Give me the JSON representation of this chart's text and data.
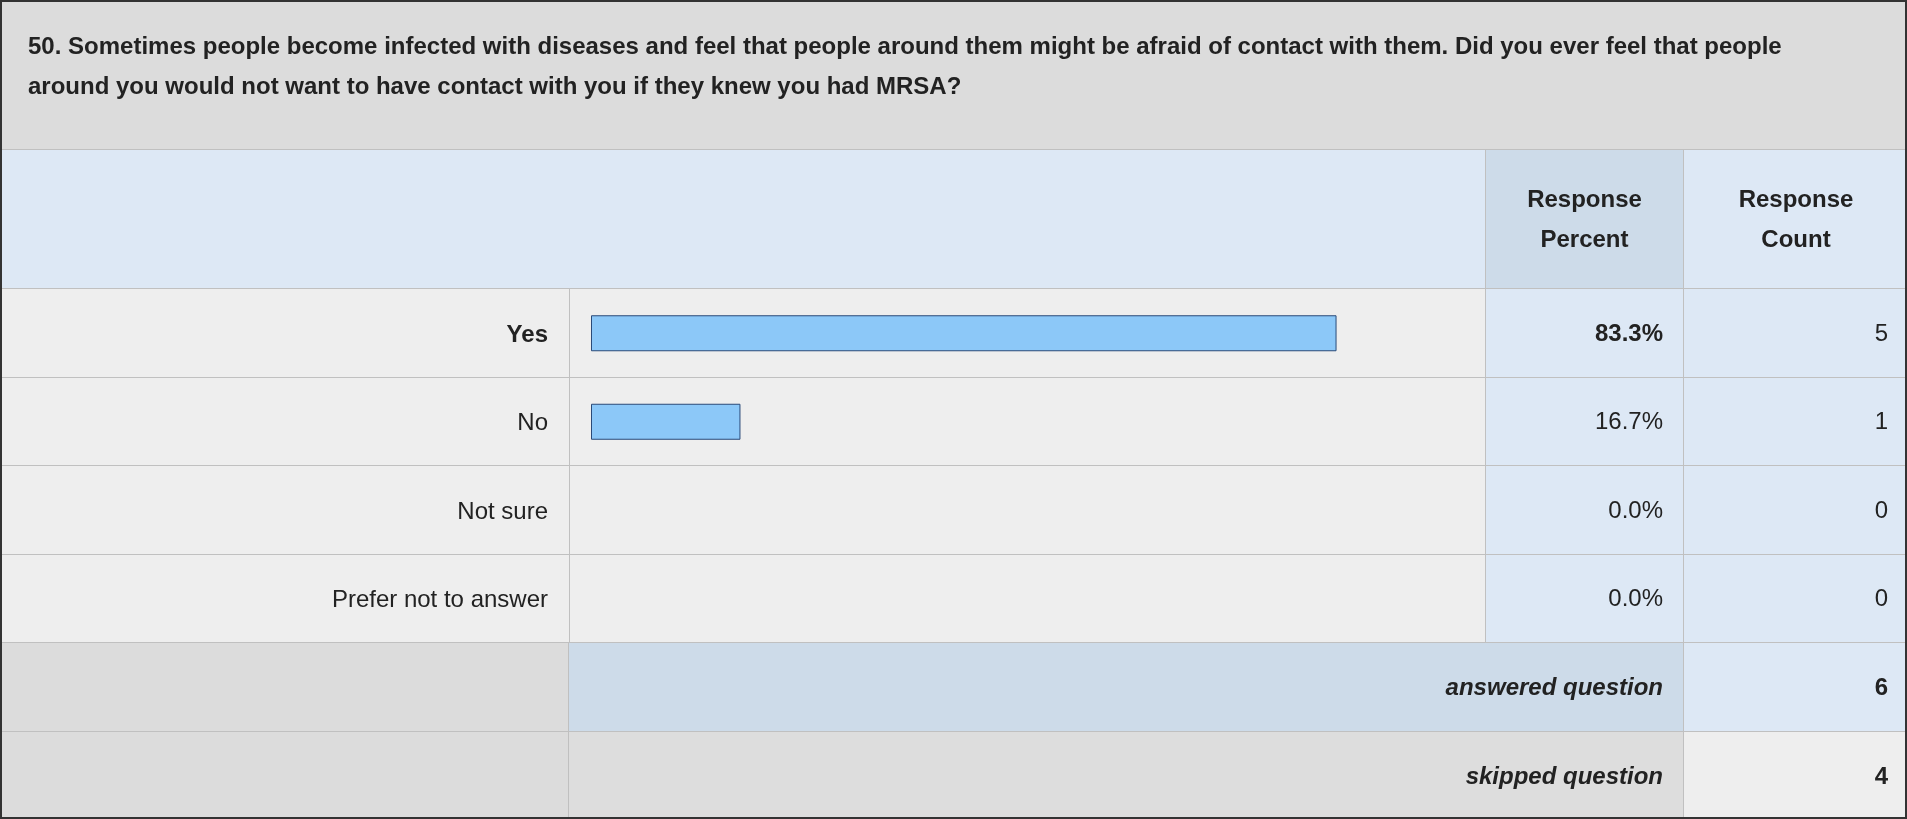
{
  "chart_data": {
    "type": "bar",
    "orientation": "horizontal",
    "title": "50. Sometimes people become infected with diseases and feel that people around them might be afraid of contact with them. Did you ever feel that people around you would not want to have contact with you if they knew you had MRSA?",
    "categories": [
      "Yes",
      "No",
      "Not sure",
      "Prefer not to answer"
    ],
    "values": [
      83.3,
      16.7,
      0.0,
      0.0
    ],
    "value_labels": [
      "83.3%",
      "16.7%",
      "0.0%",
      "0.0%"
    ],
    "color": "#8cc8f8",
    "xlim": [
      0,
      100
    ],
    "tick_labels": "y",
    "annotations": [
      "Response Percent",
      "Response Count",
      "5",
      "1",
      "0",
      "0",
      "answered question",
      "6",
      "skipped question",
      "4"
    ]
  }
}
